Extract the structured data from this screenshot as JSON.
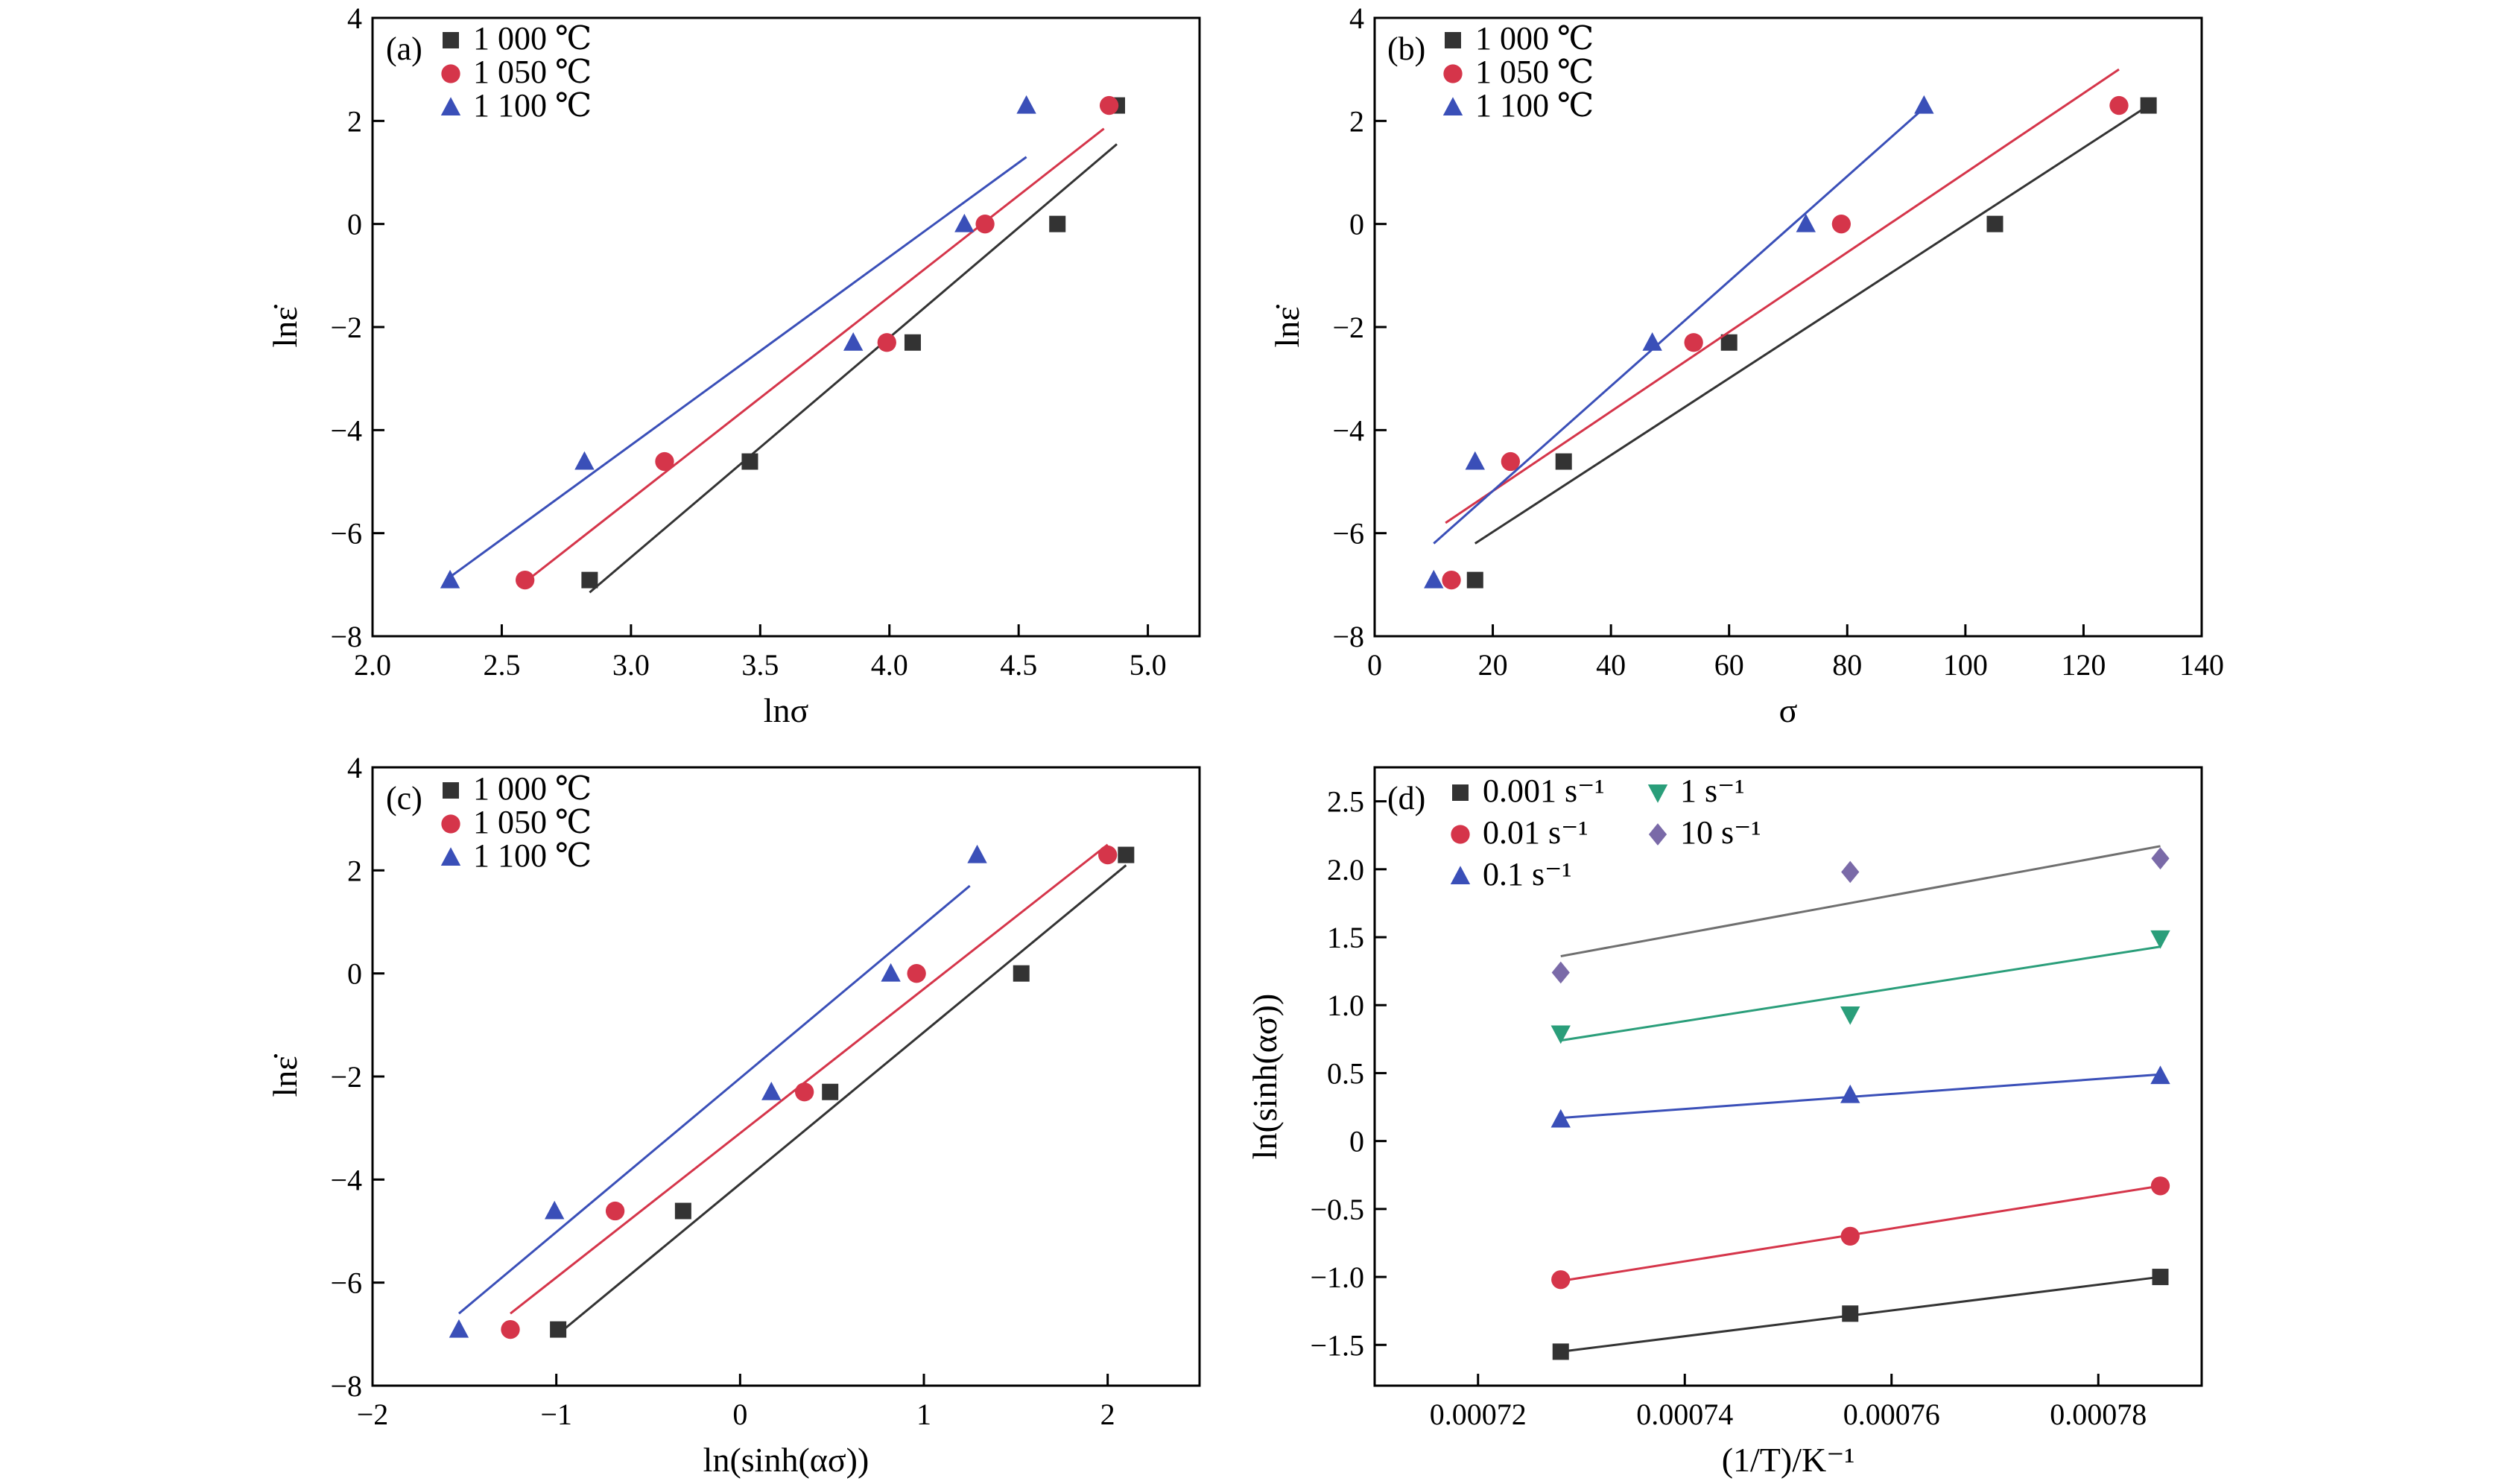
{
  "colors": {
    "black": "#333333",
    "red": "#d5354a",
    "blue": "#3a4fb8",
    "green": "#2a9e7a",
    "purple": "#7a6aa8",
    "gray": "#6f6f6f"
  },
  "chart_data": [
    {
      "type": "scatter",
      "panel": "(a)",
      "xlabel": "lnσ",
      "ylabel": "lnε̇",
      "xlim": [
        2.0,
        5.2
      ],
      "ylim": [
        -8,
        4
      ],
      "xticks": [
        2.0,
        2.5,
        3.0,
        3.5,
        4.0,
        4.5,
        5.0
      ],
      "xtick_labels": [
        "2.0",
        "2.5",
        "3.0",
        "3.5",
        "4.0",
        "4.5",
        "5.0"
      ],
      "yticks": [
        -8,
        -6,
        -4,
        -2,
        0,
        2,
        4
      ],
      "ytick_labels": [
        "−8",
        "−6",
        "−4",
        "−2",
        "0",
        "2",
        "4"
      ],
      "legend": "top-left",
      "series": [
        {
          "name": "1 000 ℃",
          "marker": "square",
          "color": "#333333",
          "x": [
            2.84,
            3.46,
            4.09,
            4.65,
            4.88
          ],
          "y": [
            -6.91,
            -4.61,
            -2.3,
            0.0,
            2.3
          ],
          "fit": {
            "x": [
              2.84,
              4.88
            ],
            "y": [
              -7.15,
              1.55
            ]
          }
        },
        {
          "name": "1 050 ℃",
          "marker": "circle",
          "color": "#d5354a",
          "x": [
            2.59,
            3.13,
            3.99,
            4.37,
            4.85
          ],
          "y": [
            -6.91,
            -4.61,
            -2.3,
            0.0,
            2.3
          ],
          "fit": {
            "x": [
              2.59,
              4.83
            ],
            "y": [
              -6.95,
              1.85
            ]
          }
        },
        {
          "name": "1 100 ℃",
          "marker": "triangle",
          "color": "#3a4fb8",
          "x": [
            2.3,
            2.82,
            3.86,
            4.29,
            4.53
          ],
          "y": [
            -6.91,
            -4.61,
            -2.3,
            0.0,
            2.3
          ],
          "fit": {
            "x": [
              2.3,
              4.53
            ],
            "y": [
              -6.85,
              1.3
            ]
          }
        }
      ]
    },
    {
      "type": "scatter",
      "panel": "(b)",
      "xlabel": "σ",
      "ylabel": "lnε̇",
      "xlim": [
        0,
        140
      ],
      "ylim": [
        -8,
        4
      ],
      "xticks": [
        0,
        20,
        40,
        60,
        80,
        100,
        120,
        140
      ],
      "xtick_labels": [
        "0",
        "20",
        "40",
        "60",
        "80",
        "100",
        "120",
        "140"
      ],
      "yticks": [
        -8,
        -6,
        -4,
        -2,
        0,
        2,
        4
      ],
      "ytick_labels": [
        "−8",
        "−6",
        "−4",
        "−2",
        "0",
        "2",
        "4"
      ],
      "legend": "top-left",
      "series": [
        {
          "name": "1 000 ℃",
          "marker": "square",
          "color": "#333333",
          "x": [
            17,
            32,
            60,
            105,
            131
          ],
          "y": [
            -6.91,
            -4.61,
            -2.3,
            0.0,
            2.3
          ],
          "fit": {
            "x": [
              17,
              131
            ],
            "y": [
              -6.2,
              2.3
            ]
          }
        },
        {
          "name": "1 050 ℃",
          "marker": "circle",
          "color": "#d5354a",
          "x": [
            13,
            23,
            54,
            79,
            126
          ],
          "y": [
            -6.91,
            -4.61,
            -2.3,
            0.0,
            2.3
          ],
          "fit": {
            "x": [
              12,
              126
            ],
            "y": [
              -5.8,
              3.0
            ]
          }
        },
        {
          "name": "1 100 ℃",
          "marker": "triangle",
          "color": "#3a4fb8",
          "x": [
            10,
            17,
            47,
            73,
            93
          ],
          "y": [
            -6.91,
            -4.61,
            -2.3,
            0.0,
            2.3
          ],
          "fit": {
            "x": [
              10,
              93
            ],
            "y": [
              -6.2,
              2.25
            ]
          }
        }
      ]
    },
    {
      "type": "scatter",
      "panel": "(c)",
      "xlabel": "ln(sinh(ασ))",
      "ylabel": "lnε̇",
      "xlim": [
        -2,
        2.5
      ],
      "ylim": [
        -8,
        4
      ],
      "xticks": [
        -2,
        -1,
        0,
        1,
        2
      ],
      "xtick_labels": [
        "−2",
        "−1",
        "0",
        "1",
        "2"
      ],
      "yticks": [
        -8,
        -6,
        -4,
        -2,
        0,
        2,
        4
      ],
      "ytick_labels": [
        "−8",
        "−6",
        "−4",
        "−2",
        "0",
        "2",
        "4"
      ],
      "legend": "top-left",
      "series": [
        {
          "name": "1 000 ℃",
          "marker": "square",
          "color": "#333333",
          "x": [
            -0.99,
            -0.31,
            0.49,
            1.53,
            2.1
          ],
          "y": [
            -6.91,
            -4.61,
            -2.3,
            0.0,
            2.3
          ],
          "fit": {
            "x": [
              -0.99,
              2.1
            ],
            "y": [
              -7.0,
              2.1
            ]
          }
        },
        {
          "name": "1 050 ℃",
          "marker": "circle",
          "color": "#d5354a",
          "x": [
            -1.25,
            -0.68,
            0.35,
            0.96,
            2.0
          ],
          "y": [
            -6.91,
            -4.61,
            -2.3,
            0.0,
            2.3
          ],
          "fit": {
            "x": [
              -1.25,
              2.0
            ],
            "y": [
              -6.6,
              2.5
            ]
          }
        },
        {
          "name": "1 100 ℃",
          "marker": "triangle",
          "color": "#3a4fb8",
          "x": [
            -1.53,
            -1.01,
            0.17,
            0.82,
            1.29
          ],
          "y": [
            -6.91,
            -4.61,
            -2.3,
            0.0,
            2.3
          ],
          "fit": {
            "x": [
              -1.53,
              1.25
            ],
            "y": [
              -6.6,
              1.7
            ]
          }
        }
      ]
    },
    {
      "type": "scatter",
      "panel": "(d)",
      "xlabel": "(1/T)/K⁻¹",
      "ylabel": "ln(sinh(ασ))",
      "xlim": [
        0.00071,
        0.00079
      ],
      "ylim": [
        -1.8,
        2.75
      ],
      "xticks": [
        0.00072,
        0.00074,
        0.00076,
        0.00078
      ],
      "xtick_labels": [
        "0.00072",
        "0.00074",
        "0.00076",
        "0.00078"
      ],
      "yticks": [
        -1.5,
        -1.0,
        -0.5,
        0,
        0.5,
        1.0,
        1.5,
        2.0,
        2.5
      ],
      "ytick_labels": [
        "−1.5",
        "−1.0",
        "−0.5",
        "0",
        "0.5",
        "1.0",
        "1.5",
        "2.0",
        "2.5"
      ],
      "legend": "top-left",
      "series": [
        {
          "name": "0.001 s⁻¹",
          "marker": "square",
          "color": "#333333",
          "x": [
            0.000728,
            0.000756,
            0.000786
          ],
          "y": [
            -1.55,
            -1.27,
            -1.0
          ],
          "fit": {
            "x": [
              0.000728,
              0.000786
            ],
            "y": [
              -1.55,
              -1.0
            ]
          }
        },
        {
          "name": "0.01 s⁻¹",
          "marker": "circle",
          "color": "#d5354a",
          "x": [
            0.000728,
            0.000756,
            0.000786
          ],
          "y": [
            -1.02,
            -0.7,
            -0.33
          ],
          "fit": {
            "x": [
              0.000728,
              0.000786
            ],
            "y": [
              -1.03,
              -0.33
            ]
          }
        },
        {
          "name": "0.1 s⁻¹",
          "marker": "triangle",
          "color": "#3a4fb8",
          "x": [
            0.000728,
            0.000756,
            0.000786
          ],
          "y": [
            0.16,
            0.34,
            0.48
          ],
          "fit": {
            "x": [
              0.000728,
              0.000786
            ],
            "y": [
              0.17,
              0.49
            ]
          }
        },
        {
          "name": "1 s⁻¹",
          "marker": "triangle-down",
          "color": "#2a9e7a",
          "x": [
            0.000728,
            0.000756,
            0.000786
          ],
          "y": [
            0.79,
            0.93,
            1.49
          ],
          "fit": {
            "x": [
              0.000728,
              0.000786
            ],
            "y": [
              0.74,
              1.43
            ]
          }
        },
        {
          "name": "10 s⁻¹",
          "marker": "diamond",
          "color": "#7a6aa8",
          "x": [
            0.000728,
            0.000756,
            0.000786
          ],
          "y": [
            1.24,
            1.98,
            2.08
          ],
          "fit": {
            "x": [
              0.000728,
              0.000786
            ],
            "y": [
              1.36,
              2.17
            ],
            "color": "#6f6f6f"
          }
        }
      ]
    }
  ]
}
